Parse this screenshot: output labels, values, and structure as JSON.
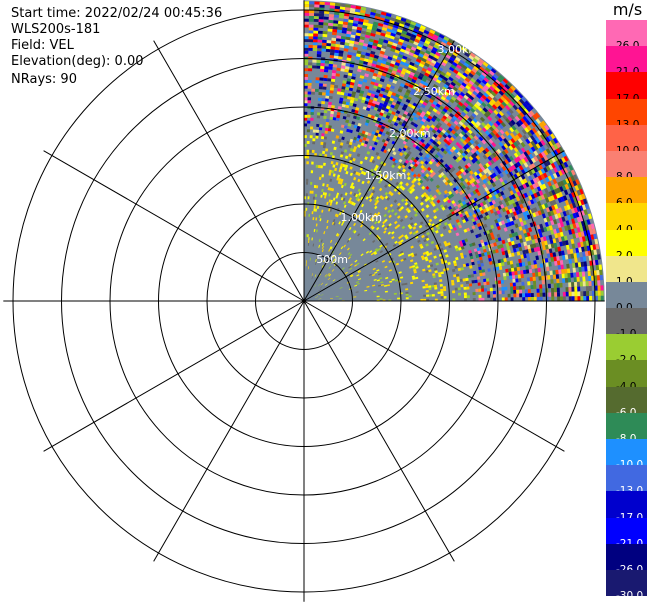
{
  "header": {
    "start_time": "Start time: 2022/02/24 00:45:36",
    "instrument": "WLS200s-181",
    "field": "Field: VEL",
    "elevation": "Elevation(deg): 0.00",
    "nrays": "NRays: 90"
  },
  "chart_data": {
    "type": "heatmap",
    "subtype": "polar-ppi",
    "field": "VEL",
    "unit": "m/s",
    "range_rings_labels": [
      "500m",
      "1.00km",
      "1.50km",
      "2.00km",
      "2.50km",
      "3.00km"
    ],
    "range_rings_km": [
      0.5,
      1.0,
      1.5,
      2.0,
      2.5,
      3.0
    ],
    "azimuth_sector_deg": [
      0,
      90
    ],
    "azimuth_spokes_deg": [
      0,
      30,
      60,
      90,
      120,
      150,
      180,
      210,
      240,
      270,
      300,
      330
    ],
    "colorbar": {
      "labels": [
        "26.0",
        "21.0",
        "17.0",
        "13.0",
        "10.0",
        "8.0",
        "6.0",
        "4.0",
        "2.0",
        "1.0",
        "0.0",
        "-1.0",
        "-2.0",
        "-4.0",
        "-6.0",
        "-8.0",
        "-10.0",
        "-13.0",
        "-17.0",
        "-21.0",
        "-26.0",
        "-30.0"
      ],
      "colors": [
        "#ff69b4",
        "#ff1493",
        "#ff0000",
        "#ff4500",
        "#ff6347",
        "#fa8072",
        "#ffa500",
        "#ffd700",
        "#ffff00",
        "#f0e68c",
        "#778899",
        "#696969",
        "#9acd32",
        "#6b8e23",
        "#556b2f",
        "#2e8b57",
        "#1e90ff",
        "#4169e1",
        "#0000cd",
        "#0000ff",
        "#000080",
        "#191970"
      ],
      "dark_label_color": "#ffffff"
    },
    "texture": {
      "background_color": "#778899",
      "noise_colors": [
        "#778899",
        "#696969",
        "#9acd32",
        "#6b8e23",
        "#ffd700",
        "#ffff00",
        "#556b2f",
        "#2e8b57",
        "#1e90ff",
        "#0000cd",
        "#0000ff",
        "#000080",
        "#ff69b4",
        "#ff1493",
        "#ff0000",
        "#ff4500",
        "#fa8072",
        "#ffa500",
        "#f0e68c",
        "#191970",
        "#4169e1"
      ]
    }
  }
}
